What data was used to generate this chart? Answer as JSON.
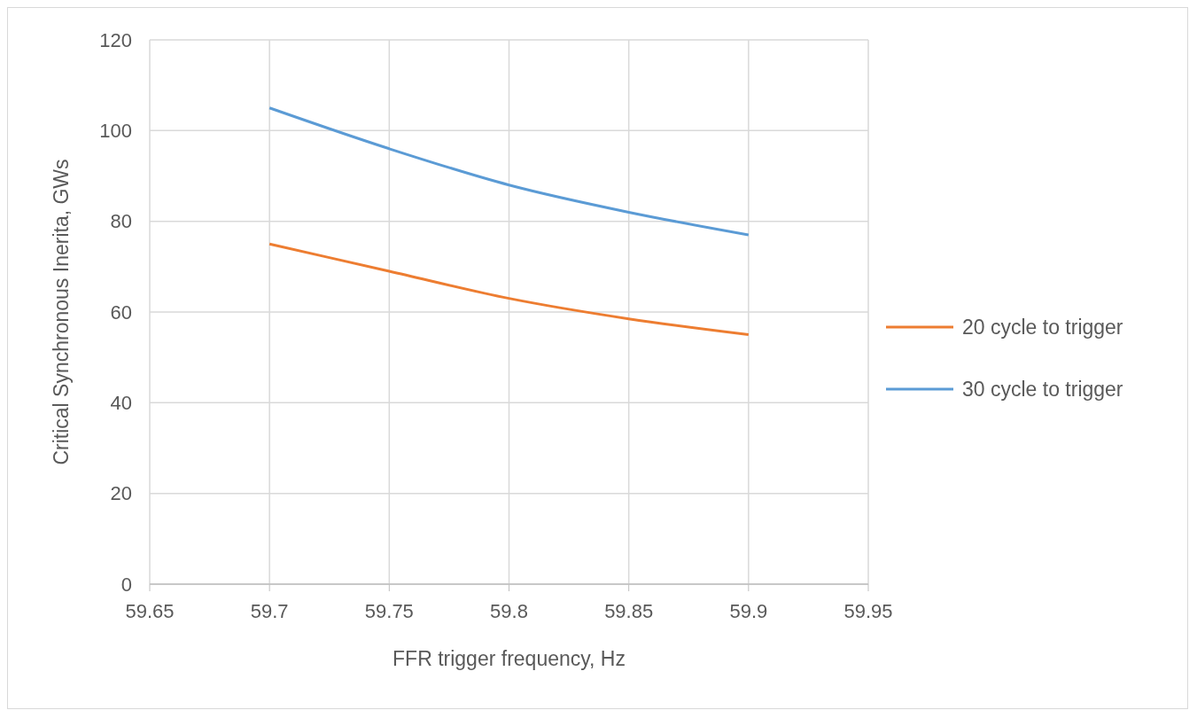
{
  "chart_data": {
    "type": "line",
    "xlabel": "FFR trigger frequency, Hz",
    "ylabel": "Critical Synchronous  Inerita, GWs",
    "x": [
      59.7,
      59.75,
      59.8,
      59.85,
      59.9
    ],
    "series": [
      {
        "name": "30 cycle to trigger",
        "color": "#5b9bd5",
        "values": [
          105,
          96,
          88,
          82,
          77
        ]
      },
      {
        "name": "20 cycle to trigger",
        "color": "#ed7d31",
        "values": [
          75,
          69,
          63,
          58.5,
          55
        ]
      }
    ],
    "xlim": [
      59.65,
      59.95
    ],
    "xticks": [
      59.65,
      59.7,
      59.75,
      59.8,
      59.85,
      59.9,
      59.95
    ],
    "ylim": [
      0,
      120
    ],
    "yticks": [
      0,
      20,
      40,
      60,
      80,
      100,
      120
    ],
    "grid": true,
    "legend": "right",
    "marker": "none",
    "line_style": "solid"
  }
}
